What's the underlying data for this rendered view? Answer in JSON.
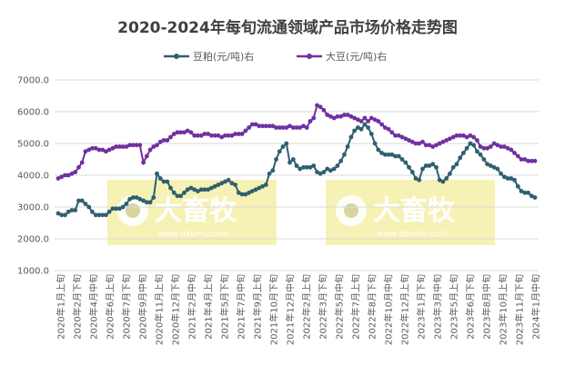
{
  "chart_data": {
    "type": "line",
    "title": "2020-2024年每旬流通领域产品市场价格走势图",
    "ylim": [
      1000,
      7000
    ],
    "yticks": [
      "7000.0",
      "6000.0",
      "5000.0",
      "4000.0",
      "3000.0",
      "2000.0",
      "1000.0"
    ],
    "ytick_values": [
      7000,
      6000,
      5000,
      4000,
      3000,
      2000,
      1000
    ],
    "grid": true,
    "legend_position": "top",
    "x_tick_labels": [
      "2020年1月上旬",
      "2020年2月下旬",
      "2020年4月中旬",
      "2020年6月上旬",
      "2020年7月下旬",
      "2020年9月中旬",
      "2020年11月上旬",
      "2020年12月下旬",
      "2021年2月中旬",
      "2021年4月上旬",
      "2021年5月下旬",
      "2021年7月中旬",
      "2021年9月上旬",
      "2021年10月下旬",
      "2021年12月中旬",
      "2022年2月上旬",
      "2022年3月下旬",
      "2022年5月中旬",
      "2022年7月上旬",
      "2022年8月下旬",
      "2022年10月中旬",
      "2022年12月上旬",
      "2023年1月下旬",
      "2023年3月中旬",
      "2023年5月上旬",
      "2023年6月下旬",
      "2023年8月中旬",
      "2023年10月上旬",
      "2023年11月下旬",
      "2024年1月中旬"
    ],
    "series": [
      {
        "name": "豆粕(元/吨)右",
        "color": "#2e5f6e",
        "values": [
          2800,
          2750,
          2750,
          2850,
          2900,
          2900,
          3200,
          3200,
          3100,
          3000,
          2850,
          2750,
          2750,
          2750,
          2750,
          2850,
          2950,
          2950,
          2950,
          3000,
          3100,
          3250,
          3300,
          3300,
          3250,
          3200,
          3150,
          3150,
          3300,
          4050,
          3900,
          3800,
          3800,
          3600,
          3450,
          3350,
          3350,
          3450,
          3550,
          3600,
          3550,
          3500,
          3550,
          3550,
          3550,
          3600,
          3650,
          3700,
          3750,
          3800,
          3850,
          3750,
          3700,
          3450,
          3400,
          3400,
          3450,
          3500,
          3550,
          3600,
          3650,
          3700,
          4050,
          4150,
          4500,
          4750,
          4900,
          5000,
          4400,
          4500,
          4300,
          4200,
          4250,
          4250,
          4250,
          4300,
          4100,
          4050,
          4100,
          4200,
          4150,
          4200,
          4300,
          4450,
          4650,
          4900,
          5200,
          5400,
          5500,
          5450,
          5600,
          5500,
          5300,
          5000,
          4800,
          4700,
          4650,
          4650,
          4650,
          4600,
          4600,
          4500,
          4400,
          4250,
          4100,
          3900,
          3850,
          4200,
          4300,
          4300,
          4350,
          4250,
          3850,
          3800,
          3900,
          4050,
          4250,
          4350,
          4550,
          4700,
          4850,
          5000,
          4950,
          4750,
          4650,
          4500,
          4350,
          4300,
          4250,
          4200,
          4050,
          3950,
          3900,
          3900,
          3850,
          3650,
          3500,
          3450,
          3450,
          3350,
          3300
        ]
      },
      {
        "name": "大豆(元/吨)右",
        "color": "#7030a0",
        "values": [
          3900,
          3950,
          4000,
          4000,
          4050,
          4100,
          4250,
          4400,
          4750,
          4800,
          4850,
          4850,
          4800,
          4800,
          4750,
          4800,
          4850,
          4900,
          4900,
          4900,
          4900,
          4950,
          4950,
          4950,
          4950,
          4400,
          4600,
          4800,
          4900,
          4950,
          5050,
          5100,
          5100,
          5200,
          5300,
          5350,
          5350,
          5350,
          5400,
          5350,
          5250,
          5250,
          5250,
          5300,
          5300,
          5250,
          5250,
          5250,
          5200,
          5250,
          5250,
          5250,
          5300,
          5300,
          5300,
          5400,
          5500,
          5600,
          5600,
          5550,
          5550,
          5550,
          5550,
          5550,
          5500,
          5500,
          5500,
          5500,
          5550,
          5500,
          5500,
          5500,
          5550,
          5500,
          5700,
          5800,
          6200,
          6150,
          6050,
          5900,
          5850,
          5800,
          5850,
          5850,
          5900,
          5900,
          5850,
          5800,
          5750,
          5700,
          5800,
          5700,
          5800,
          5750,
          5700,
          5600,
          5500,
          5450,
          5350,
          5250,
          5250,
          5200,
          5150,
          5100,
          5050,
          5000,
          5000,
          5050,
          4950,
          4950,
          4900,
          4950,
          5000,
          5050,
          5100,
          5150,
          5200,
          5250,
          5250,
          5250,
          5200,
          5250,
          5200,
          5100,
          4900,
          4850,
          4850,
          4900,
          5000,
          4950,
          4900,
          4900,
          4850,
          4800,
          4700,
          4600,
          4500,
          4500,
          4450,
          4450,
          4450
        ]
      }
    ]
  },
  "watermark": {
    "text": "大畜牧",
    "url": "www.dxumu.com",
    "color": "#f5f0a8"
  }
}
